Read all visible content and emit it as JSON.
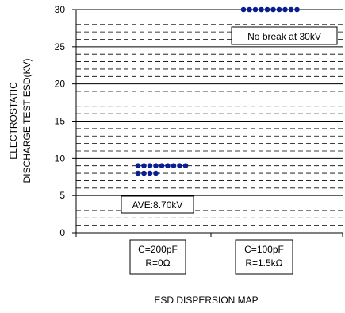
{
  "chart_data": {
    "type": "scatter",
    "ylabel_lines": [
      "ELECTROSTATIC",
      "DISCHARGE TEST ESD(KV)"
    ],
    "xlabel": "ESD DISPERSION MAP",
    "ylim": [
      0,
      30
    ],
    "yticks": [
      0,
      5,
      10,
      15,
      20,
      25,
      30
    ],
    "grid": "dashed every 1 kV, solid every 5 kV",
    "categories": [
      {
        "lines": [
          "C=200pF",
          "R=0Ω"
        ]
      },
      {
        "lines": [
          "C=100pF",
          "R=1.5kΩ"
        ]
      }
    ],
    "series": [
      {
        "category": 0,
        "color": "#0a1f8f",
        "points": [
          {
            "y": 9,
            "count": 9
          },
          {
            "y": 8,
            "count": 4
          }
        ]
      },
      {
        "category": 1,
        "color": "#0a1f8f",
        "points": [
          {
            "y": 30,
            "count": 10
          }
        ]
      }
    ],
    "annotations": [
      {
        "text": "AVE:8.70kV",
        "category": 0
      },
      {
        "text": "No break at 30kV",
        "category": 1
      }
    ]
  }
}
